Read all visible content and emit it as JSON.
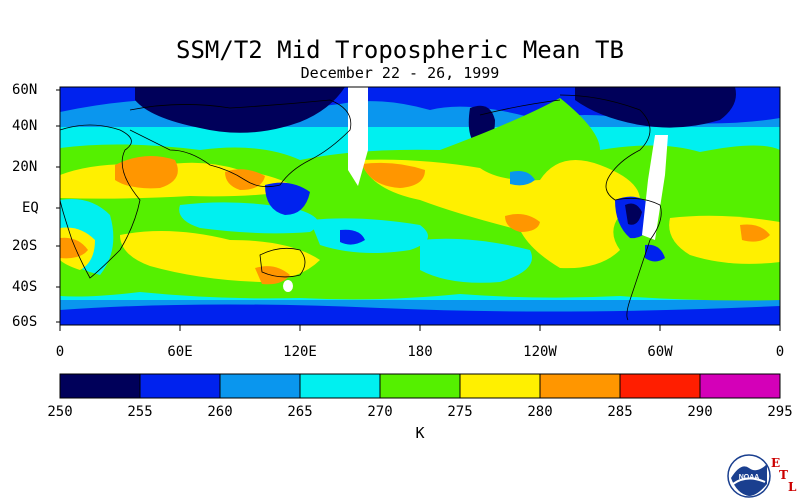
{
  "header": {
    "title": "SSM/T2 Mid Tropospheric Mean TB",
    "subtitle": "December 22 - 26, 1999"
  },
  "map": {
    "lat_labels": [
      "60N",
      "40N",
      "20N",
      "EQ",
      "20S",
      "40S",
      "60S"
    ],
    "lon_labels": [
      "0",
      "60E",
      "120E",
      "180",
      "120W",
      "60W",
      "0"
    ],
    "missing_data_color": "#ffffff",
    "coastline_color": "#000000"
  },
  "colorbar": {
    "ticks": [
      "250",
      "255",
      "260",
      "265",
      "270",
      "275",
      "280",
      "285",
      "290",
      "295"
    ],
    "colors": [
      "#00005a",
      "#0022ee",
      "#0a96ee",
      "#00f0f0",
      "#55f000",
      "#fff000",
      "#ff9600",
      "#ff1e00",
      "#d400b8"
    ],
    "units": "K"
  },
  "logo": {
    "agency_text": "NOAA",
    "lab_letters": [
      "E",
      "T",
      "L"
    ],
    "lab_color": "#cc0000"
  }
}
